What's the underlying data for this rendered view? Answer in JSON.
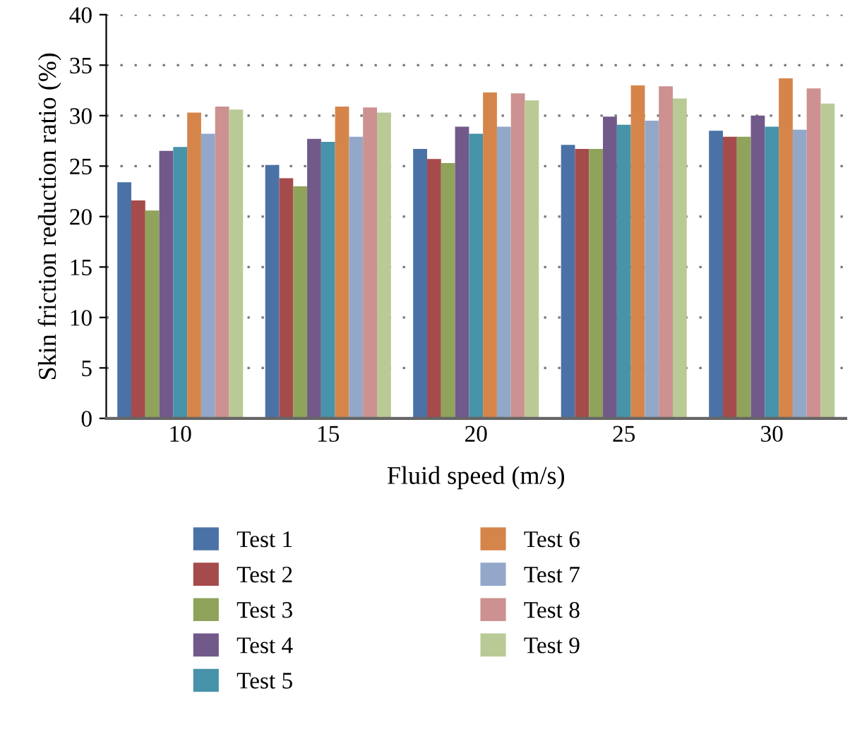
{
  "chart_data": {
    "type": "bar",
    "xlabel": "Fluid speed (m/s)",
    "ylabel": "Skin friction reduction ratio (%)",
    "categories": [
      "10",
      "15",
      "20",
      "25",
      "30"
    ],
    "ylim": [
      0,
      40
    ],
    "yticks": [
      0,
      5,
      10,
      15,
      20,
      25,
      30,
      35,
      40
    ],
    "grid": "y",
    "legend": "bottom",
    "series": [
      {
        "name": "Test 1",
        "color": "#4a72a6",
        "values": [
          23.4,
          25.1,
          26.7,
          27.1,
          28.5
        ]
      },
      {
        "name": "Test 2",
        "color": "#a64b4b",
        "values": [
          21.6,
          23.8,
          25.7,
          26.7,
          27.9
        ]
      },
      {
        "name": "Test 3",
        "color": "#8fa35a",
        "values": [
          20.6,
          23.0,
          25.3,
          26.7,
          27.9
        ]
      },
      {
        "name": "Test 4",
        "color": "#71598a",
        "values": [
          26.5,
          27.7,
          28.9,
          29.9,
          30.0
        ]
      },
      {
        "name": "Test 5",
        "color": "#4793a9",
        "values": [
          26.9,
          27.4,
          28.2,
          29.1,
          28.9
        ]
      },
      {
        "name": "Test 6",
        "color": "#d6854a",
        "values": [
          30.3,
          30.9,
          32.3,
          33.0,
          33.7
        ]
      },
      {
        "name": "Test 7",
        "color": "#93a8c9",
        "values": [
          28.2,
          27.9,
          28.9,
          29.5,
          28.6
        ]
      },
      {
        "name": "Test 8",
        "color": "#cc9190",
        "values": [
          30.9,
          30.8,
          32.2,
          32.9,
          32.7
        ]
      },
      {
        "name": "Test 9",
        "color": "#b9ca96",
        "values": [
          30.6,
          30.3,
          31.5,
          31.7,
          31.2
        ]
      }
    ]
  }
}
